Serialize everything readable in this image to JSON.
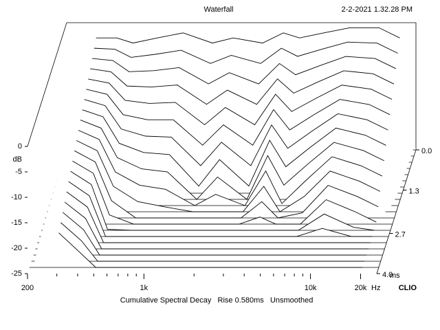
{
  "chart_data": {
    "type": "waterfall",
    "title": "Waterfall",
    "timestamp": "2-2-2021 1.32.28 PM",
    "caption": "Cumulative Spectral Decay   Rise 0.580ms   Unsmoothed",
    "brand": "CLIO",
    "ylabel": "dB",
    "xlabel": "Hz",
    "zlabel": "ms",
    "log_x": true,
    "color": "#000000",
    "xlim": [
      200,
      25000
    ],
    "xticks": [
      200,
      {
        "value": 1000,
        "label": "1k"
      },
      {
        "value": 10000,
        "label": "10k"
      },
      {
        "value": 20000,
        "label": "20k"
      }
    ],
    "xminorticks": [
      300,
      400,
      500,
      600,
      700,
      800,
      900,
      2000,
      3000,
      4000,
      5000,
      6000,
      7000,
      8000,
      9000
    ],
    "ylim": [
      -25,
      0
    ],
    "yticks": [
      0,
      -5,
      -10,
      -15,
      -20,
      -25
    ],
    "zlim": [
      0,
      4
    ],
    "zticks": [
      {
        "value": 0,
        "label": "0.0"
      },
      1.3,
      2.7,
      {
        "value": 4,
        "label": "4.0"
      }
    ],
    "frequencies": [
      300,
      400,
      500,
      700,
      1000,
      1500,
      2000,
      3000,
      4000,
      5000,
      7000,
      10000,
      15000,
      20000
    ],
    "slices": [
      {
        "time": 0,
        "values": [
          -3,
          -3,
          -4,
          -3,
          -2,
          -4,
          -3,
          -4,
          -2,
          -3,
          -2,
          -1,
          -1,
          -3
        ]
      },
      {
        "time": 0.2,
        "values": [
          -3.8,
          -4,
          -5.6,
          -5,
          -4.2,
          -6.8,
          -5.2,
          -6.8,
          -3.8,
          -5.4,
          -4,
          -2.6,
          -2.8,
          -4.8
        ]
      },
      {
        "time": 0.4,
        "values": [
          -4.6,
          -5,
          -7.2,
          -7,
          -6.4,
          -9.6,
          -7.4,
          -9.6,
          -5.6,
          -7.8,
          -6,
          -4.2,
          -4.6,
          -6.6
        ]
      },
      {
        "time": 0.6,
        "values": [
          -5.4,
          -6,
          -8.8,
          -9,
          -8.6,
          -12.4,
          -9.6,
          -12.4,
          -7.4,
          -10.2,
          -8,
          -5.8,
          -6.4,
          -8.4
        ]
      },
      {
        "time": 0.8,
        "values": [
          -6.2,
          -7,
          -10.4,
          -11,
          -10.8,
          -15.2,
          -11.8,
          -15.2,
          -9.2,
          -12.6,
          -10,
          -7.4,
          -8.2,
          -10.2
        ]
      },
      {
        "time": 1.0,
        "values": [
          -7,
          -8,
          -12,
          -13,
          -13,
          -18,
          -14,
          -18,
          -11,
          -15,
          -12,
          -9,
          -10,
          -12
        ]
      },
      {
        "time": 1.2,
        "values": [
          -7.8,
          -9,
          -13.6,
          -15,
          -15.2,
          -20.8,
          -16.2,
          -20.8,
          -12.8,
          -17.4,
          -14,
          -10.6,
          -11.8,
          -13.8
        ]
      },
      {
        "time": 1.4,
        "values": [
          -8.6,
          -10,
          -15.2,
          -17,
          -17.4,
          -23.6,
          -18.4,
          -23.6,
          -14.6,
          -19.8,
          -16,
          -12.2,
          -13.6,
          -15.6
        ]
      },
      {
        "time": 1.6,
        "values": [
          -9.4,
          -11,
          -16.8,
          -19,
          -19.6,
          -25,
          -20.6,
          -25,
          -16.4,
          -22.2,
          -18,
          -13.8,
          -15.4,
          -17.4
        ]
      },
      {
        "time": 1.8,
        "values": [
          -10.2,
          -12,
          -18.4,
          -21,
          -21.8,
          -25,
          -22.8,
          -25,
          -18.2,
          -24.6,
          -20,
          -15.4,
          -17.2,
          -19.2
        ]
      },
      {
        "time": 2.0,
        "values": [
          -11,
          -13,
          -20,
          -23,
          -24,
          -25,
          -25,
          -25,
          -20,
          -25,
          -22,
          -17,
          -19,
          -21
        ]
      },
      {
        "time": 2.2,
        "values": [
          -11.8,
          -14,
          -21.6,
          -25,
          -25,
          -25,
          -25,
          -25,
          -21.8,
          -25,
          -24,
          -18.6,
          -20.8,
          -22.8
        ]
      },
      {
        "time": 2.4,
        "values": [
          -12.6,
          -15,
          -23.2,
          -25,
          -25,
          -25,
          -25,
          -25,
          -23.6,
          -25,
          -25,
          -20.2,
          -22.6,
          -24.6
        ]
      },
      {
        "time": 2.6,
        "values": [
          -13.4,
          -16,
          -24.8,
          -25,
          -25,
          -25,
          -25,
          -25,
          -25,
          -25,
          -25,
          -21.8,
          -24.4,
          -25
        ]
      },
      {
        "time": 2.8,
        "values": [
          -14.2,
          -17,
          -25,
          -25,
          -25,
          -25,
          -25,
          -25,
          -25,
          -25,
          -25,
          -23.4,
          -25,
          -25
        ]
      },
      {
        "time": 3.0,
        "values": [
          -15,
          -18,
          -25,
          -25,
          -25,
          -25,
          -25,
          -25,
          -25,
          -25,
          -25,
          -25,
          -25,
          -25
        ]
      },
      {
        "time": 3.2,
        "values": [
          -15.8,
          -19,
          -25,
          -25,
          -25,
          -25,
          -25,
          -25,
          -25,
          -25,
          -25,
          -25,
          -25,
          -25
        ]
      },
      {
        "time": 3.4,
        "values": [
          -16.6,
          -20,
          -25,
          -25,
          -25,
          -25,
          -25,
          -25,
          -25,
          -25,
          -25,
          -25,
          -25,
          -25
        ]
      },
      {
        "time": 3.6,
        "values": [
          -17.4,
          -21,
          -25,
          -25,
          -25,
          -25,
          -25,
          -25,
          -25,
          -25,
          -25,
          -25,
          -25,
          -25
        ]
      },
      {
        "time": 3.8,
        "values": [
          -18.2,
          -22,
          -25,
          -25,
          -25,
          -25,
          -25,
          -25,
          -25,
          -25,
          -25,
          -25,
          -25,
          -25
        ]
      }
    ]
  }
}
